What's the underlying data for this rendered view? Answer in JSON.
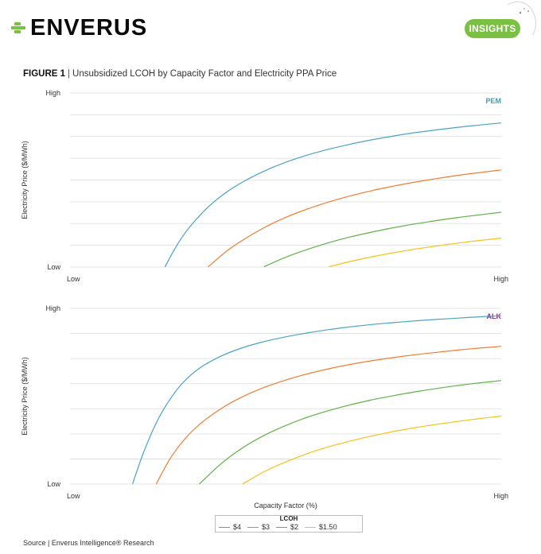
{
  "header": {
    "brand": "ENVERUS",
    "badge": "INSIGHTS",
    "brand_color": "#7ac043"
  },
  "figure": {
    "label": "FIGURE 1",
    "separator": "|",
    "title": "Unsubsidized LCOH by Capacity Factor and Electricity PPA Price"
  },
  "chart_data": [
    {
      "type": "line",
      "panel_label": "PEM",
      "panel_label_color": "#3a9fbf",
      "ylabel": "Electricity Price ($/MWh)",
      "xlabel": "",
      "y_ticks": [
        "Low",
        "High"
      ],
      "x_ticks": [
        "Low",
        "High"
      ],
      "xlim": [
        0,
        100
      ],
      "ylim": [
        0,
        100
      ],
      "grid": true,
      "x": [
        22,
        25,
        28,
        32,
        36,
        40,
        45,
        50,
        55,
        60,
        65,
        70,
        75,
        80,
        85,
        90,
        95,
        100
      ],
      "series": [
        {
          "name": "$4",
          "color": "#4aa3c6",
          "values": [
            0,
            13.4,
            23.8,
            34.4,
            42.5,
            48.8,
            55.1,
            60.2,
            64.3,
            67.7,
            70.6,
            73.1,
            75.3,
            77.2,
            78.8,
            80.3,
            81.6,
            82.8
          ]
        },
        {
          "name": "$3",
          "color": "#ef7d32",
          "values": [
            null,
            null,
            null,
            0,
            8.5,
            15.4,
            22.6,
            28.5,
            33.3,
            37.4,
            40.9,
            43.9,
            46.5,
            48.8,
            50.8,
            52.7,
            54.3,
            55.8
          ]
        },
        {
          "name": "$2",
          "color": "#5fb246",
          "values": [
            null,
            null,
            null,
            null,
            null,
            null,
            0.2,
            5.6,
            10.1,
            14.0,
            17.3,
            20.1,
            22.6,
            24.8,
            26.7,
            28.5,
            30.0,
            31.5
          ]
        },
        {
          "name": "$1.50",
          "color": "#f4c317",
          "values": [
            null,
            null,
            null,
            null,
            null,
            null,
            null,
            null,
            null,
            0.2,
            3.2,
            5.9,
            8.2,
            10.3,
            12.1,
            13.8,
            15.3,
            16.6
          ]
        }
      ]
    },
    {
      "type": "line",
      "panel_label": "ALK",
      "panel_label_color": "#8b2f8f",
      "ylabel": "Electricity Price ($/MWh)",
      "xlabel": "Capacity Factor (%)",
      "y_ticks": [
        "Low",
        "High"
      ],
      "x_ticks": [
        "Low",
        "High"
      ],
      "xlim": [
        0,
        100
      ],
      "ylim": [
        0,
        100
      ],
      "grid": true,
      "x": [
        14.5,
        17,
        20,
        23,
        26,
        30,
        35,
        40,
        45,
        50,
        55,
        60,
        65,
        70,
        75,
        80,
        85,
        90,
        95,
        100
      ],
      "series": [
        {
          "name": "$4",
          "color": "#4aa3c6",
          "values": [
            0,
            17.6,
            34.8,
            47.6,
            57.2,
            65.9,
            72.8,
            77.6,
            81.1,
            83.8,
            86.0,
            87.9,
            89.5,
            90.8,
            91.9,
            92.9,
            93.7,
            94.5,
            95.2,
            95.8
          ]
        },
        {
          "name": "$3",
          "color": "#ef7d32",
          "values": [
            null,
            null,
            0,
            13.6,
            23.9,
            33.9,
            42.9,
            49.7,
            55.0,
            59.2,
            62.7,
            65.6,
            68.1,
            70.2,
            72.0,
            73.6,
            75.0,
            76.3,
            77.4,
            78.4
          ]
        },
        {
          "name": "$2",
          "color": "#5fb246",
          "values": [
            null,
            null,
            null,
            null,
            null,
            0,
            11.5,
            20.6,
            27.7,
            33.3,
            38.0,
            41.8,
            45.1,
            47.9,
            50.3,
            52.5,
            54.4,
            56.1,
            57.6,
            58.9
          ]
        },
        {
          "name": "$1.50",
          "color": "#f4c317",
          "values": [
            null,
            null,
            null,
            null,
            null,
            null,
            null,
            0,
            7.0,
            12.6,
            17.3,
            21.2,
            24.5,
            27.4,
            29.9,
            32.1,
            34.0,
            35.7,
            37.3,
            38.7
          ]
        }
      ]
    }
  ],
  "legend": {
    "title": "LCOH",
    "items": [
      {
        "label": "$4",
        "color": "#4aa3c6"
      },
      {
        "label": "$3",
        "color": "#ef7d32"
      },
      {
        "label": "$2",
        "color": "#5fb246"
      },
      {
        "label": "$1.50",
        "color": "#f4c317"
      }
    ]
  },
  "footer": {
    "source": "Source | Enverus Intelligence® Research"
  }
}
